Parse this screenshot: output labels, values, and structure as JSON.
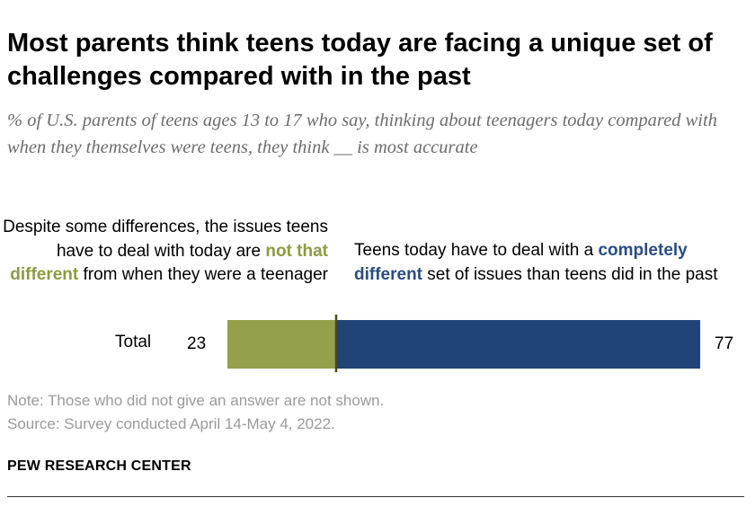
{
  "title": "Most parents think teens today are facing a unique set of challenges compared with in the past",
  "subtitle": "% of U.S. parents of teens ages 13 to 17 who say, thinking about teenagers today compared with when they themselves were teens, they think __ is most accurate",
  "labels": {
    "left_pre": "Despite some differences, the issues teens have to deal with today are ",
    "left_highlight": "not that different",
    "left_post": " from when they were a teenager",
    "right_pre": "Teens today have to deal with a ",
    "right_highlight": "completely different",
    "right_post": " set of issues than teens did in the past"
  },
  "note": "Note: Those who did not give an answer are not shown.",
  "source": "Source: Survey conducted April 14-May 4, 2022.",
  "brand": "PEW RESEARCH CENTER",
  "colors": {
    "not_that_different": "#96a04b",
    "completely_different": "#214478",
    "divider": "#4a4a1e"
  },
  "chart_data": {
    "type": "bar",
    "orientation": "horizontal",
    "stacked": true,
    "categories": [
      "Total"
    ],
    "series": [
      {
        "name": "not that different",
        "values": [
          23
        ]
      },
      {
        "name": "completely different",
        "values": [
          77
        ]
      }
    ],
    "value_labels": [
      "23",
      "77"
    ],
    "xlim": [
      0,
      100
    ]
  }
}
